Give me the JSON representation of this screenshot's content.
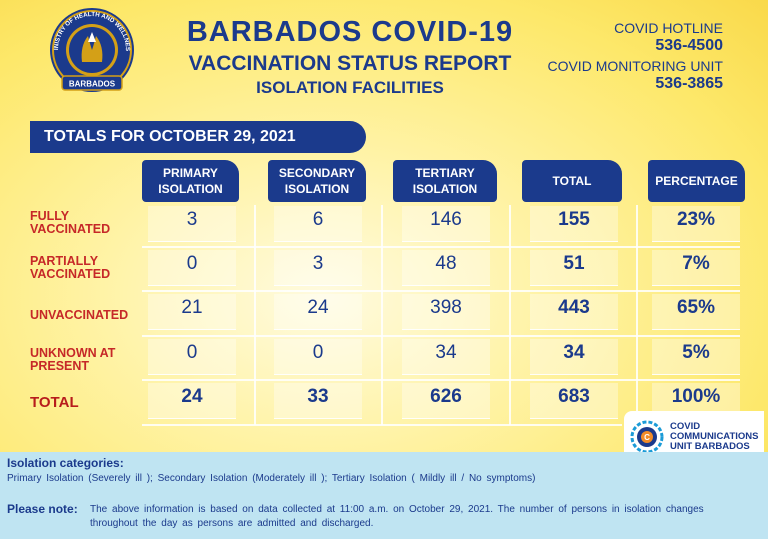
{
  "logo": {
    "top_text": "MINISTRY OF HEALTH AND WELLNESS",
    "bottom_text": "BARBADOS",
    "colors": {
      "ring": "#1b3a8c",
      "gold": "#d4a017"
    }
  },
  "header": {
    "title": "BARBADOS COVID-19",
    "subtitle": "VACCINATION STATUS REPORT",
    "subsubtitle": "ISOLATION FACILITIES"
  },
  "contacts": [
    {
      "label": "COVID HOTLINE",
      "number": "536-4500"
    },
    {
      "label": "COVID MONITORING UNIT",
      "number": "536-3865"
    }
  ],
  "date_banner": "TOTALS FOR OCTOBER 29, 2021",
  "table": {
    "columns": [
      "PRIMARY ISOLATION",
      "SECONDARY ISOLATION",
      "TERTIARY ISOLATION",
      "TOTAL",
      "PERCENTAGE"
    ],
    "rows": [
      {
        "label": "FULLY VACCINATED",
        "values": [
          "3",
          "6",
          "146",
          "155",
          "23%"
        ]
      },
      {
        "label": "PARTIALLY VACCINATED",
        "values": [
          "0",
          "3",
          "48",
          "51",
          "7%"
        ]
      },
      {
        "label": "UNVACCINATED",
        "values": [
          "21",
          "24",
          "398",
          "443",
          "65%"
        ]
      },
      {
        "label": "UNKNOWN AT PRESENT",
        "values": [
          "0",
          "0",
          "34",
          "34",
          "5%"
        ]
      },
      {
        "label": "TOTAL",
        "values": [
          "24",
          "33",
          "626",
          "683",
          "100%"
        ]
      }
    ]
  },
  "ccu": {
    "line1": "COVID",
    "line2": "COMMUNICATIONS",
    "line3": "UNIT BARBADOS"
  },
  "footer": {
    "categories_title": "Isolation categories:",
    "categories_text": "Primary Isolation  (Severely ill );  Secondary Isolation  (Moderately ill );  Tertiary Isolation  ( Mildly ill / No symptoms)",
    "note_label": "Please note:",
    "note_text": "The above information is based on data collected at 11:00 a.m. on October 29, 2021.  The number of persons in isolation changes throughout the day as persons are admitted and discharged."
  },
  "colors": {
    "navy": "#1b3a8c",
    "red": "#c62828",
    "footer_bg": "#bfe4f2"
  }
}
